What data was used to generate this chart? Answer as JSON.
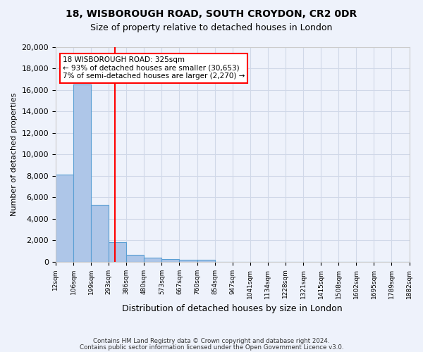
{
  "title1": "18, WISBOROUGH ROAD, SOUTH CROYDON, CR2 0DR",
  "title2": "Size of property relative to detached houses in London",
  "xlabel": "Distribution of detached houses by size in London",
  "ylabel": "Number of detached properties",
  "bin_labels": [
    "12sqm",
    "106sqm",
    "199sqm",
    "293sqm",
    "386sqm",
    "480sqm",
    "573sqm",
    "667sqm",
    "760sqm",
    "854sqm",
    "947sqm",
    "1041sqm",
    "1134sqm",
    "1228sqm",
    "1321sqm",
    "1415sqm",
    "1508sqm",
    "1602sqm",
    "1695sqm",
    "1789sqm",
    "1882sqm"
  ],
  "bar_heights": [
    8100,
    16500,
    5300,
    1850,
    650,
    350,
    280,
    200,
    180,
    0,
    0,
    0,
    0,
    0,
    0,
    0,
    0,
    0,
    0,
    0
  ],
  "bar_color": "#aec6e8",
  "bar_edge_color": "#5a9fd4",
  "grid_color": "#d0d8e8",
  "annotation_text": "18 WISBOROUGH ROAD: 325sqm\n← 93% of detached houses are smaller (30,653)\n7% of semi-detached houses are larger (2,270) →",
  "annotation_box_color": "white",
  "annotation_box_edge_color": "red",
  "ylim": [
    0,
    20000
  ],
  "yticks": [
    0,
    2000,
    4000,
    6000,
    8000,
    10000,
    12000,
    14000,
    16000,
    18000,
    20000
  ],
  "footnote1": "Contains HM Land Registry data © Crown copyright and database right 2024.",
  "footnote2": "Contains public sector information licensed under the Open Government Licence v3.0.",
  "bg_color": "#eef2fb"
}
